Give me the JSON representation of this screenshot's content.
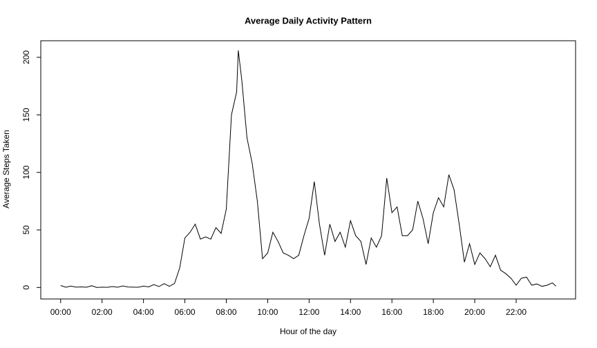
{
  "chart_data": {
    "type": "line",
    "title": "Average Daily Activity Pattern",
    "x_label": "Hour of the day",
    "y_label": "Average Steps Taken",
    "x": [
      0,
      0.25,
      0.5,
      0.75,
      1,
      1.25,
      1.5,
      1.75,
      2,
      2.25,
      2.5,
      2.75,
      3,
      3.25,
      3.5,
      3.75,
      4,
      4.25,
      4.5,
      4.75,
      5,
      5.25,
      5.5,
      5.75,
      6,
      6.25,
      6.5,
      6.75,
      7,
      7.25,
      7.5,
      7.75,
      8,
      8.25,
      8.5,
      8.58,
      8.75,
      9,
      9.25,
      9.5,
      9.75,
      10,
      10.25,
      10.5,
      10.75,
      11,
      11.25,
      11.5,
      11.75,
      12,
      12.25,
      12.5,
      12.75,
      13,
      13.25,
      13.5,
      13.75,
      14,
      14.25,
      14.5,
      14.75,
      15,
      15.25,
      15.5,
      15.75,
      16,
      16.25,
      16.5,
      16.75,
      17,
      17.25,
      17.5,
      17.75,
      18,
      18.25,
      18.5,
      18.75,
      19,
      19.25,
      19.5,
      19.75,
      20,
      20.25,
      20.5,
      20.75,
      21,
      21.25,
      21.5,
      21.75,
      22,
      22.25,
      22.5,
      22.75,
      23,
      23.25,
      23.5,
      23.75,
      23.92
    ],
    "series": [
      {
        "name": "Average steps",
        "color": "#000000",
        "values": [
          1.7,
          0.2,
          1.2,
          0.3,
          0.5,
          0.2,
          1.5,
          0,
          0.3,
          0.1,
          0.8,
          0.2,
          1.3,
          0.4,
          0.3,
          0.2,
          1.2,
          0.5,
          2.5,
          0.8,
          3.3,
          1,
          3.5,
          17,
          43,
          48,
          55,
          42,
          44,
          42,
          52,
          47,
          68,
          150,
          170,
          206,
          180,
          130,
          108,
          75,
          25,
          30,
          48,
          40,
          30,
          28,
          25,
          28,
          45,
          60,
          92,
          55,
          28,
          55,
          40,
          48,
          35,
          58,
          45,
          40,
          20,
          43,
          35,
          45,
          95,
          65,
          70,
          45,
          45,
          50,
          75,
          60,
          38,
          65,
          78,
          70,
          98,
          85,
          55,
          22,
          38,
          20,
          30,
          25,
          18,
          28,
          15,
          12,
          8,
          2,
          8,
          9,
          2,
          3,
          1,
          2,
          4,
          1.1
        ]
      }
    ],
    "xlim": [
      -0.96,
      24.87
    ],
    "ylim": [
      -10,
      214.4
    ],
    "xticks": [
      {
        "value": 0,
        "label": "00:00"
      },
      {
        "value": 2,
        "label": "02:00"
      },
      {
        "value": 4,
        "label": "04:00"
      },
      {
        "value": 6,
        "label": "06:00"
      },
      {
        "value": 8,
        "label": "08:00"
      },
      {
        "value": 10,
        "label": "10:00"
      },
      {
        "value": 12,
        "label": "12:00"
      },
      {
        "value": 14,
        "label": "14:00"
      },
      {
        "value": 16,
        "label": "16:00"
      },
      {
        "value": 18,
        "label": "18:00"
      },
      {
        "value": 20,
        "label": "20:00"
      },
      {
        "value": 22,
        "label": "22:00"
      }
    ],
    "yticks": [
      0,
      50,
      100,
      150,
      200
    ]
  }
}
